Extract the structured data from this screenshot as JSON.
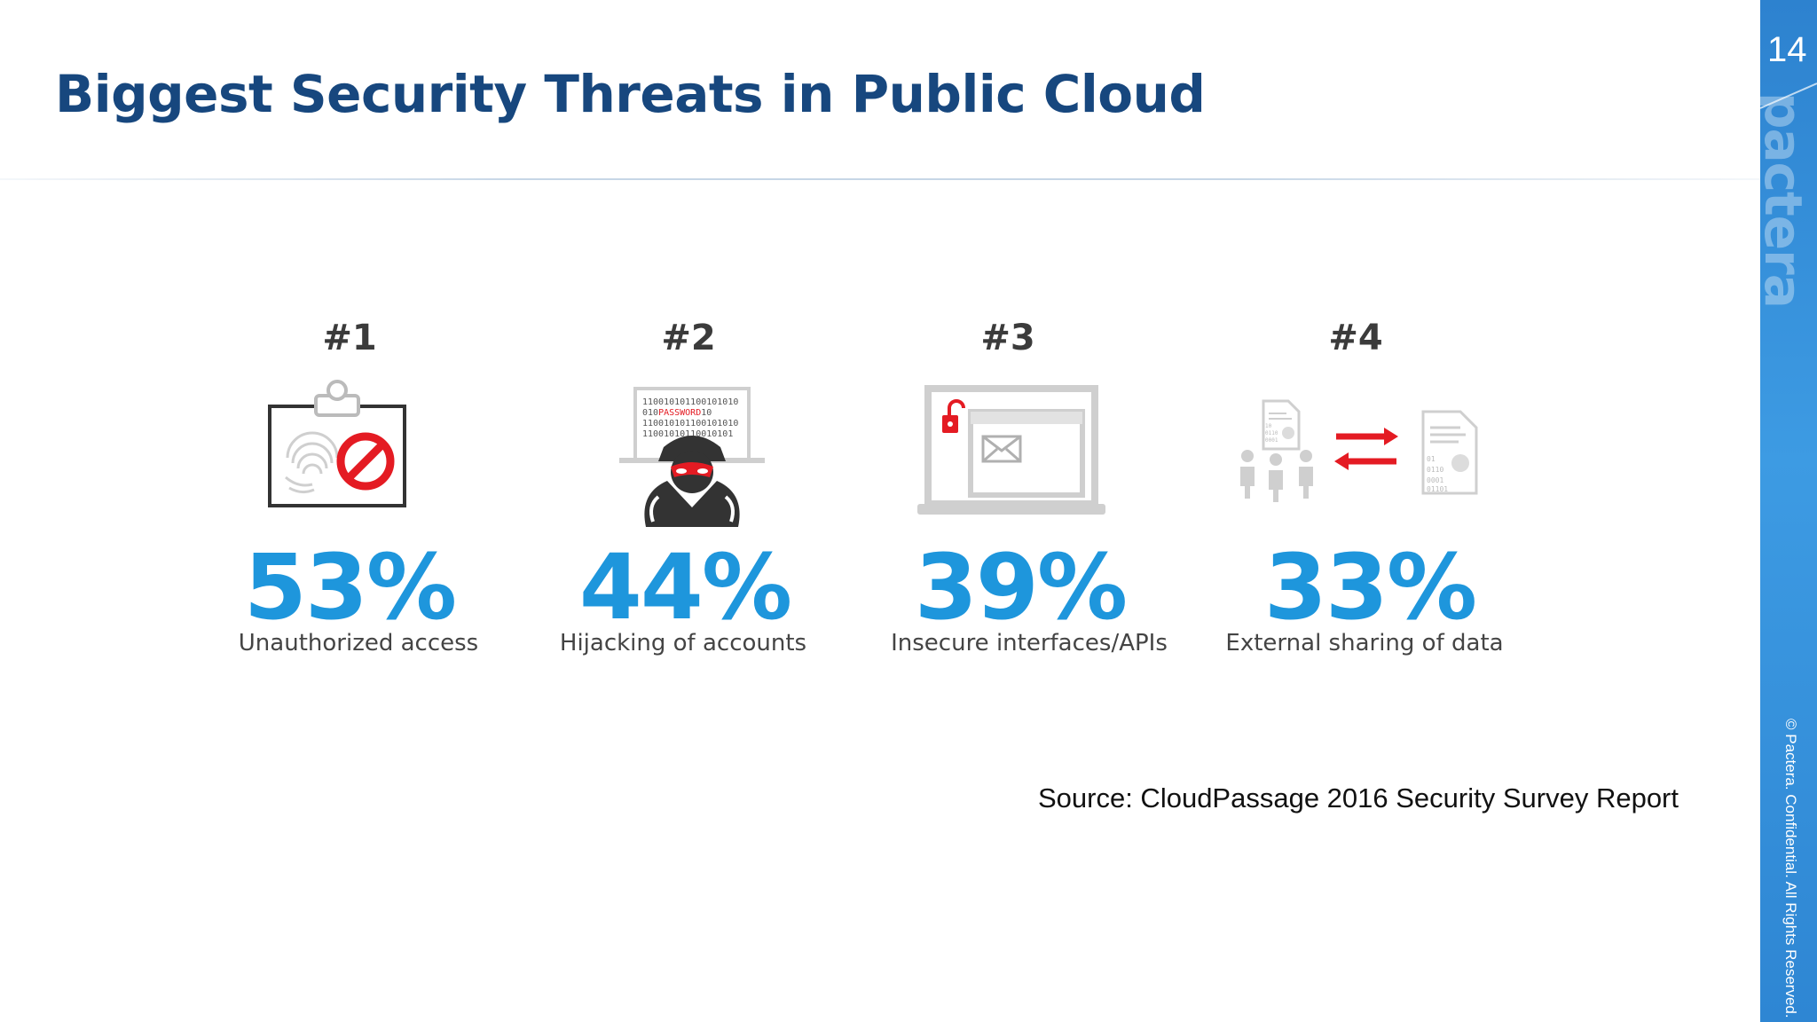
{
  "slide": {
    "title": "Biggest Security Threats in Public Cloud",
    "source": "Source: CloudPassage 2016 Security Survey Report"
  },
  "sidebar": {
    "slide_number": "14",
    "brand": "pactera",
    "copyright": "© Pactera. Confidential. All Rights Reserved."
  },
  "threats": [
    {
      "rank": "#1",
      "percent": "53%",
      "label": "Unauthorized access",
      "icon": "clipboard-fingerprint-blocked-icon"
    },
    {
      "rank": "#2",
      "percent": "44%",
      "label": "Hijacking of accounts",
      "icon": "masked-hacker-password-icon"
    },
    {
      "rank": "#3",
      "percent": "39%",
      "label": "Insecure interfaces/APIs",
      "icon": "laptop-unlocked-mail-icon"
    },
    {
      "rank": "#4",
      "percent": "33%",
      "label": "External sharing of data",
      "icon": "data-exchange-arrows-icon"
    }
  ],
  "icon_text": {
    "binary_lines": [
      "110010101100101010",
      "010",
      "PASSWORD",
      "10",
      "110010101100101010",
      "11001010110010101"
    ],
    "data_bits": [
      "01",
      "0110",
      "0001",
      "01101"
    ],
    "data_bits_small": [
      "10",
      "0110",
      "0001",
      "01101"
    ]
  },
  "colors": {
    "title": "#17477e",
    "percent": "#1e96dc",
    "accent_red": "#e41b23",
    "sidebar": "#2e86d3"
  }
}
